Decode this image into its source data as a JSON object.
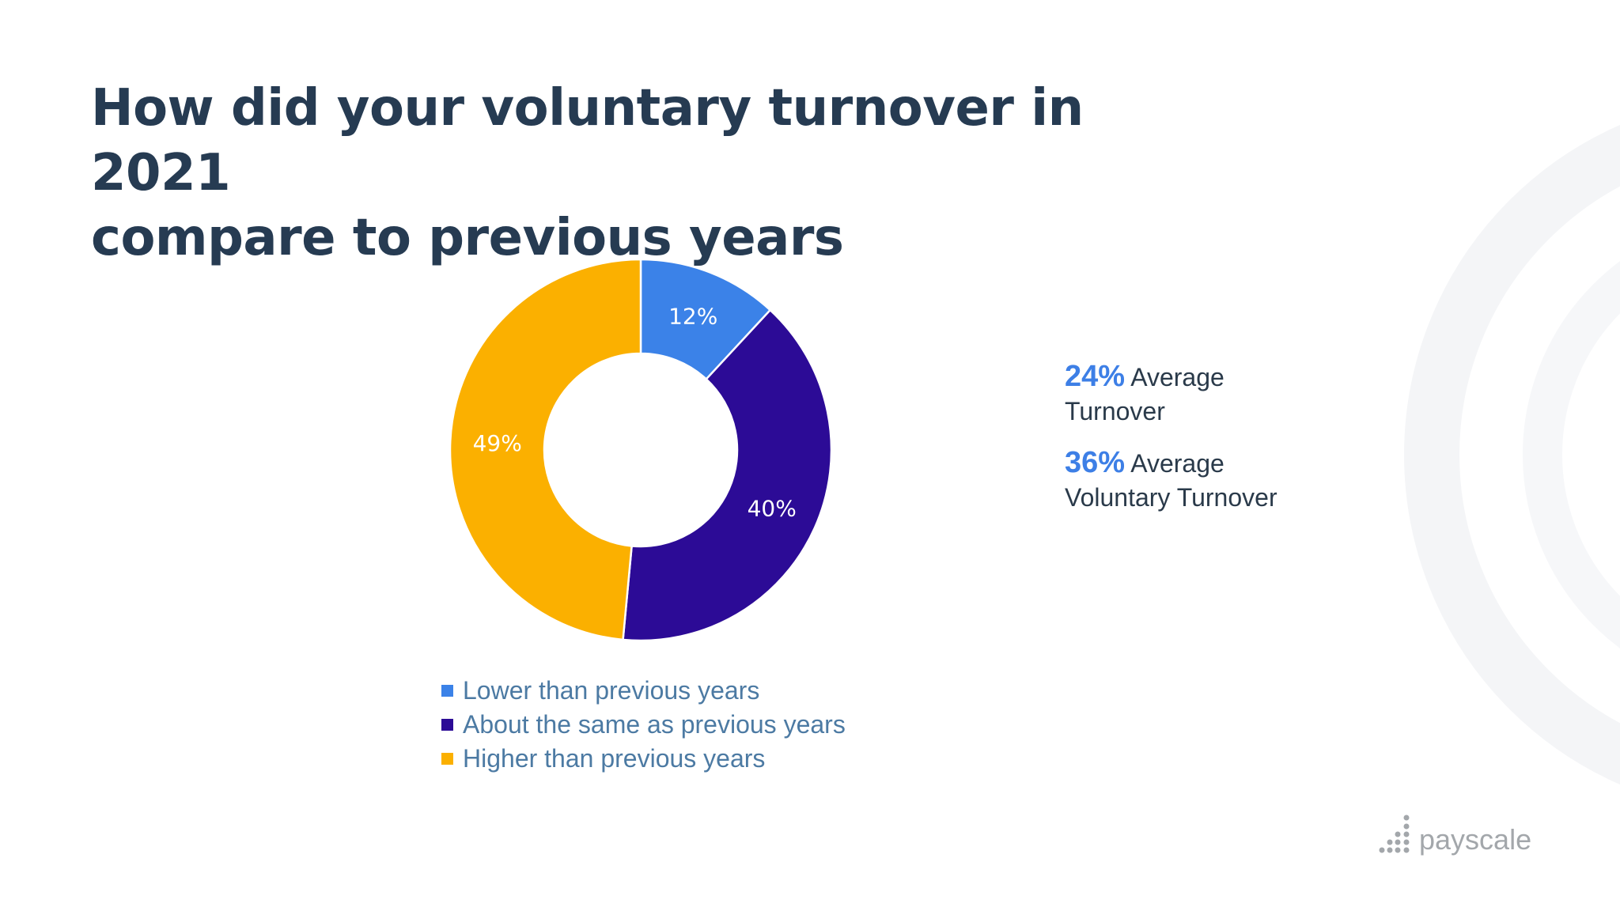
{
  "title_lines": [
    "How did your voluntary turnover in 2021",
    "compare to previous years"
  ],
  "chart_data": {
    "type": "pie",
    "donut": true,
    "title": "How did your voluntary turnover in 2021 compare to previous years",
    "categories": [
      "Lower than previous years",
      "About the same as previous years",
      "Higher than previous years"
    ],
    "values": [
      12,
      40,
      49
    ],
    "labels": [
      "12%",
      "40%",
      "49%"
    ],
    "colors": [
      "#3b82e8",
      "#2c0b96",
      "#fbb000"
    ],
    "legend_position": "bottom"
  },
  "stats": [
    {
      "value": "24%",
      "label_line1": "Average",
      "label_line2": "Turnover"
    },
    {
      "value": "36%",
      "label_line1": "Average",
      "label_line2": "Voluntary Turnover"
    }
  ],
  "logo": {
    "text": "payscale",
    "icon": "payscale-dots-icon"
  }
}
